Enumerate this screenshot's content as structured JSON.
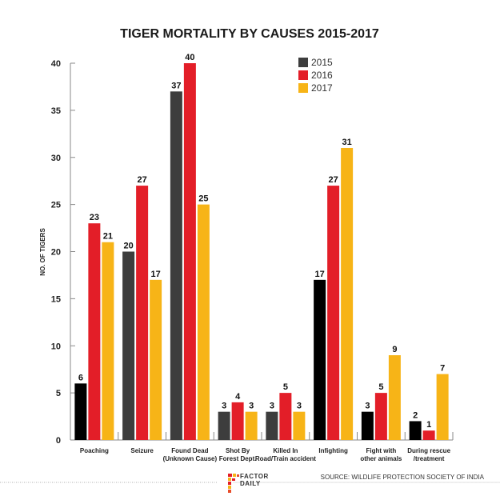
{
  "chart_data": {
    "type": "bar",
    "title": "TIGER MORTALITY BY CAUSES 2015-2017",
    "xlabel": "",
    "ylabel": "NO. OF TIGERS",
    "ylim": [
      0,
      40
    ],
    "yticks": [
      0,
      5,
      10,
      15,
      20,
      25,
      30,
      35,
      40
    ],
    "grid": false,
    "legend_position": "top-center",
    "categories": [
      [
        "Poaching"
      ],
      [
        "Seizure"
      ],
      [
        "Found Dead",
        "(Unknown Cause)"
      ],
      [
        "Shot By",
        "Forest Dept."
      ],
      [
        "Killed In",
        "Road/Train accident"
      ],
      [
        "Infighting"
      ],
      [
        "Fight with",
        "other animals"
      ],
      [
        "During rescue",
        "/treatment"
      ]
    ],
    "series": [
      {
        "name": "2015",
        "color": "#3d3d3d",
        "values": [
          6,
          20,
          37,
          3,
          3,
          17,
          3,
          2
        ]
      },
      {
        "name": "2016",
        "color": "#e31e28",
        "values": [
          23,
          27,
          40,
          4,
          5,
          27,
          5,
          1
        ]
      },
      {
        "name": "2017",
        "color": "#f7b417",
        "values": [
          21,
          17,
          25,
          3,
          3,
          31,
          9,
          7
        ]
      }
    ],
    "bar_2015_black_categories": [
      0,
      5,
      6,
      7
    ],
    "black_color": "#000000"
  },
  "footer": {
    "brand_line1": "FACTOR",
    "brand_line2": "DAILY",
    "source": "SOURCE: WILDLIFE PROTECTION SOCIETY OF INDIA"
  }
}
